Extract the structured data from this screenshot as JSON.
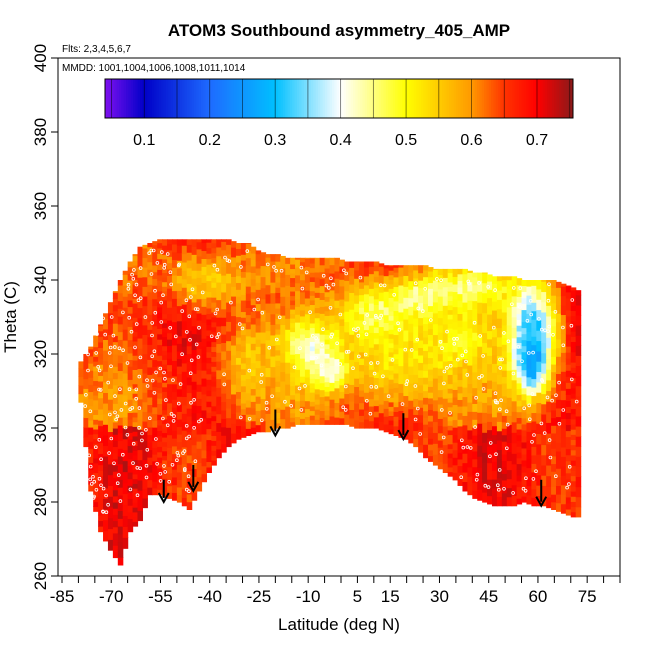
{
  "chart_data": {
    "type": "heatmap",
    "title": "ATOM3 Southbound asymmetry_405_AMP",
    "flights_note": "Flts: 2,3,4,5,6,7",
    "dates_note": "MMDD: 1001,1004,1006,1008,1011,1014",
    "xlabel": "Latitude (deg N)",
    "ylabel": "Theta (C)",
    "xlim": [
      -85,
      85
    ],
    "ylim": [
      260,
      400
    ],
    "x_ticks": [
      -85,
      -70,
      -55,
      -40,
      -25,
      -10,
      5,
      15,
      30,
      45,
      60,
      75
    ],
    "x_minor_step": 5,
    "y_ticks": [
      260,
      280,
      300,
      320,
      340,
      360,
      380,
      400
    ],
    "colorbar": {
      "vmin": 0.04,
      "vmax": 0.755,
      "ticks": [
        0.1,
        0.2,
        0.3,
        0.4,
        0.5,
        0.6,
        0.7
      ],
      "stops": [
        {
          "v": 0.04,
          "c": "#7f10f0"
        },
        {
          "v": 0.1,
          "c": "#0000c8"
        },
        {
          "v": 0.2,
          "c": "#1e6bff"
        },
        {
          "v": 0.3,
          "c": "#00c0ff"
        },
        {
          "v": 0.4,
          "c": "#ffffff"
        },
        {
          "v": 0.5,
          "c": "#ffff00"
        },
        {
          "v": 0.6,
          "c": "#ff9900"
        },
        {
          "v": 0.65,
          "c": "#ff3300"
        },
        {
          "v": 0.7,
          "c": "#ff0000"
        },
        {
          "v": 0.755,
          "c": "#8b1a1a"
        }
      ]
    },
    "boundary": {
      "lats": [
        -80,
        -77,
        -74,
        -71,
        -68,
        -65,
        -62,
        -59,
        -56,
        -53,
        -50,
        -47,
        -44,
        -41,
        -38,
        -35,
        -32,
        -29,
        -26,
        -23,
        -20,
        -17,
        -14,
        -11,
        -8,
        -5,
        -2,
        1,
        4,
        7,
        10,
        13,
        16,
        19,
        22,
        25,
        28,
        31,
        34,
        37,
        40,
        43,
        46,
        49,
        52,
        55,
        58,
        61,
        64,
        67,
        70,
        72
      ],
      "lower": [
        307,
        283,
        272,
        267,
        263,
        272,
        275,
        282,
        282,
        281,
        280,
        278,
        283,
        288,
        292,
        295,
        297,
        298,
        299,
        299,
        300,
        300,
        301,
        301,
        301,
        301,
        301,
        301,
        300,
        300,
        300,
        299,
        298,
        297,
        295,
        292,
        290,
        288,
        286,
        283,
        281,
        280,
        279,
        279,
        279,
        280,
        279,
        279,
        278,
        277,
        276,
        276
      ],
      "upper": [
        318,
        322,
        328,
        334,
        340,
        345,
        349,
        350,
        351,
        351,
        351,
        351,
        351,
        351,
        351,
        351,
        350,
        350,
        348,
        347,
        347,
        346,
        346,
        346,
        346,
        346,
        346,
        345,
        345,
        345,
        345,
        344,
        344,
        344,
        344,
        344,
        343,
        343,
        343,
        343,
        342,
        342,
        341,
        341,
        341,
        340,
        340,
        340,
        340,
        339,
        338,
        337
      ]
    },
    "features": [
      {
        "lat": -10,
        "theta": 322,
        "amp": 0.4,
        "sx": 9,
        "sy": 8
      },
      {
        "lat": -3,
        "theta": 316,
        "amp": 0.35,
        "sx": 6,
        "sy": 5
      },
      {
        "lat": 12,
        "theta": 330,
        "amp": 0.43,
        "sx": 14,
        "sy": 10
      },
      {
        "lat": 26,
        "theta": 335,
        "amp": 0.4,
        "sx": 10,
        "sy": 6
      },
      {
        "lat": 40,
        "theta": 338,
        "amp": 0.42,
        "sx": 10,
        "sy": 5
      },
      {
        "lat": 58,
        "theta": 320,
        "amp": 0.08,
        "sx": 4.5,
        "sy": 9
      },
      {
        "lat": 58,
        "theta": 327,
        "amp": 0.3,
        "sx": 8,
        "sy": 14
      },
      {
        "lat": 18,
        "theta": 318,
        "amp": 0.52,
        "sx": 18,
        "sy": 12
      },
      {
        "lat": 36,
        "theta": 325,
        "amp": 0.5,
        "sx": 14,
        "sy": 10
      },
      {
        "lat": -40,
        "theta": 340,
        "amp": 0.55,
        "sx": 15,
        "sy": 8
      },
      {
        "lat": -28,
        "theta": 318,
        "amp": 0.55,
        "sx": 10,
        "sy": 12
      }
    ],
    "arrows": [
      {
        "lat": -54,
        "theta_top": 286,
        "theta_tip": 280
      },
      {
        "lat": -45,
        "theta_top": 290,
        "theta_tip": 283
      },
      {
        "lat": -20,
        "theta_top": 305,
        "theta_tip": 298
      },
      {
        "lat": 19,
        "theta_top": 304,
        "theta_tip": 297
      },
      {
        "lat": 61,
        "theta_top": 286,
        "theta_tip": 279
      }
    ]
  }
}
